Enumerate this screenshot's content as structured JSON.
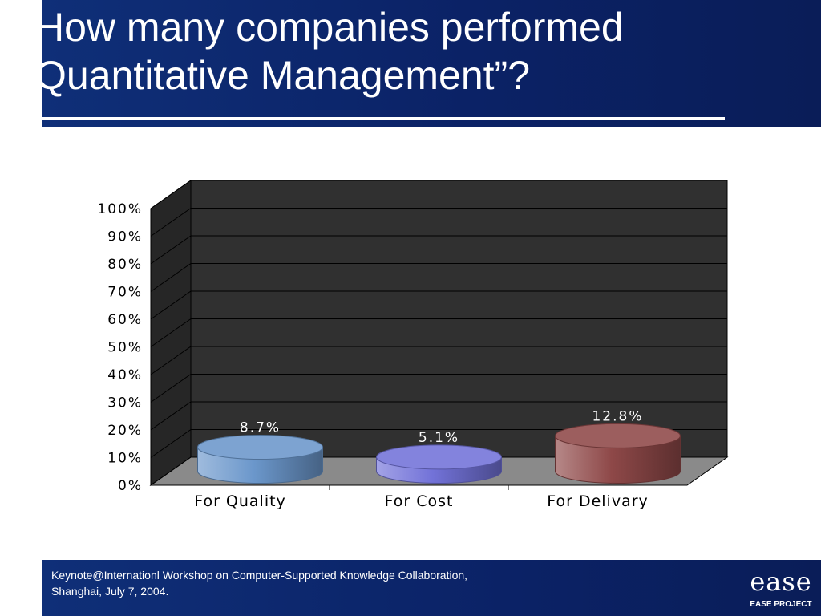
{
  "slide": {
    "title": "How many companies performed\nQuantitative Management”?",
    "footer": "Keynote@Internationl Workshop on Computer-Supported Knowledge Collaboration,\nShanghai, July 7, 2004.",
    "logo_mark": "ease",
    "logo_text": "EASE PROJECT"
  },
  "chart_data": {
    "type": "bar",
    "categories": [
      "For Quality",
      "For Cost",
      "For Delivary"
    ],
    "values": [
      8.7,
      5.1,
      12.8
    ],
    "data_labels": [
      "8.7%",
      "5.1%",
      "12.8%"
    ],
    "ylim": [
      0,
      100
    ],
    "ytick_values": [
      0,
      10,
      20,
      30,
      40,
      50,
      60,
      70,
      80,
      90,
      100
    ],
    "yticks": [
      "0%",
      "10%",
      "20%",
      "30%",
      "40%",
      "50%",
      "60%",
      "70%",
      "80%",
      "90%",
      "100%"
    ],
    "grid": true,
    "colors": {
      "For Quality": "#6b97cb",
      "For Cost": "#7272d8",
      "For Delivary": "#8e4848"
    },
    "plot_background": "#303030",
    "floor_color": "#8a8a8a"
  }
}
